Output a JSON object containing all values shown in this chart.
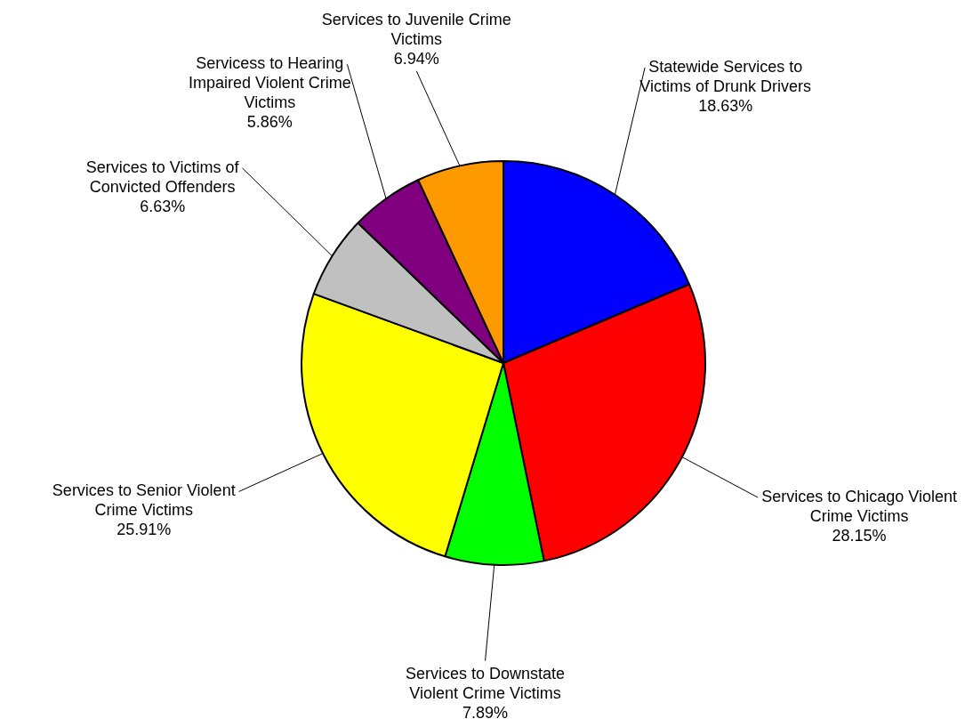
{
  "chart_data": {
    "type": "pie",
    "categories": [
      "Statewide Services to Victims of Drunk Drivers",
      "Services to Chicago Violent Crime Victims",
      "Services to Downstate Violent Crime Victims",
      "Services to Senior Violent Crime Victims",
      "Services to Victims of Convicted Offenders",
      "Servicess to Hearing Impaired Violent Crime Victims",
      "Services to Juvenile Crime Victims"
    ],
    "values": [
      18.63,
      28.15,
      7.89,
      25.91,
      6.63,
      5.86,
      6.94
    ],
    "colors": [
      "#0000ff",
      "#ff0000",
      "#00ff00",
      "#ffff00",
      "#c0c0c0",
      "#800080",
      "#ff9900"
    ],
    "value_labels": [
      "18.63%",
      "28.15%",
      "7.89%",
      "25.91%",
      "6.63%",
      "5.86%",
      "6.94%"
    ],
    "legend": false
  }
}
